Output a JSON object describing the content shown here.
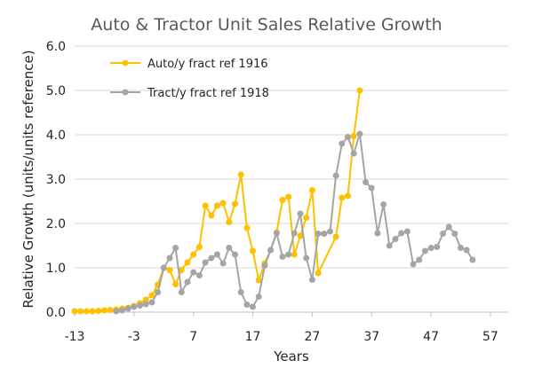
{
  "chart_data": {
    "type": "line",
    "title": "Auto & Tractor Unit Sales Relative Growth",
    "xlabel": "Years",
    "ylabel": "Relative Growth (units/units reference)",
    "xlim": [
      -13,
      60
    ],
    "ylim": [
      0,
      6
    ],
    "x_ticks": [
      "-13",
      "-3",
      "7",
      "17",
      "27",
      "37",
      "47",
      "57"
    ],
    "y_ticks": [
      "0.0",
      "1.0",
      "2.0",
      "3.0",
      "4.0",
      "5.0",
      "6.0"
    ],
    "grid": "horizontal",
    "legend_position": "top-left",
    "series": [
      {
        "name": "Auto/y fract ref 1916",
        "color": "#FFC000",
        "points": [
          [
            -13,
            0.02
          ],
          [
            -12,
            0.02
          ],
          [
            -11,
            0.02
          ],
          [
            -10,
            0.02
          ],
          [
            -9,
            0.03
          ],
          [
            -8,
            0.04
          ],
          [
            -7,
            0.05
          ],
          [
            -6,
            0.06
          ],
          [
            -5,
            0.08
          ],
          [
            -4,
            0.1
          ],
          [
            -3,
            0.14
          ],
          [
            -2,
            0.2
          ],
          [
            -1,
            0.28
          ],
          [
            0,
            0.38
          ],
          [
            1,
            0.62
          ],
          [
            2,
            1.0
          ],
          [
            3,
            0.95
          ],
          [
            4,
            0.63
          ],
          [
            5,
            0.95
          ],
          [
            6,
            1.12
          ],
          [
            7,
            1.3
          ],
          [
            8,
            1.47
          ],
          [
            9,
            2.4
          ],
          [
            10,
            2.18
          ],
          [
            11,
            2.4
          ],
          [
            12,
            2.46
          ],
          [
            13,
            2.03
          ],
          [
            14,
            2.44
          ],
          [
            15,
            3.1
          ],
          [
            16,
            1.9
          ],
          [
            17,
            1.38
          ],
          [
            18,
            0.72
          ],
          [
            19,
            1.1
          ],
          [
            20,
            1.4
          ],
          [
            21,
            1.8
          ],
          [
            22,
            2.53
          ],
          [
            23,
            2.6
          ],
          [
            24,
            1.3
          ],
          [
            25,
            1.72
          ],
          [
            26,
            2.13
          ],
          [
            27,
            2.75
          ],
          [
            28,
            0.88
          ],
          [
            31,
            1.7
          ],
          [
            32,
            2.58
          ],
          [
            33,
            2.62
          ],
          [
            34,
            3.97
          ],
          [
            35,
            5.0
          ]
        ]
      },
      {
        "name": "Tract/y fract ref 1918",
        "color": "#A5A5A5",
        "points": [
          [
            -6,
            0.02
          ],
          [
            -5,
            0.04
          ],
          [
            -4,
            0.08
          ],
          [
            -3,
            0.12
          ],
          [
            -2,
            0.15
          ],
          [
            -1,
            0.18
          ],
          [
            0,
            0.22
          ],
          [
            1,
            0.45
          ],
          [
            2,
            1.0
          ],
          [
            3,
            1.22
          ],
          [
            4,
            1.45
          ],
          [
            5,
            0.45
          ],
          [
            6,
            0.68
          ],
          [
            7,
            0.9
          ],
          [
            8,
            0.83
          ],
          [
            9,
            1.12
          ],
          [
            10,
            1.22
          ],
          [
            11,
            1.3
          ],
          [
            12,
            1.1
          ],
          [
            13,
            1.45
          ],
          [
            14,
            1.3
          ],
          [
            15,
            0.45
          ],
          [
            16,
            0.17
          ],
          [
            17,
            0.12
          ],
          [
            18,
            0.35
          ],
          [
            19,
            1.05
          ],
          [
            20,
            1.4
          ],
          [
            21,
            1.78
          ],
          [
            22,
            1.25
          ],
          [
            23,
            1.3
          ],
          [
            24,
            1.78
          ],
          [
            25,
            2.22
          ],
          [
            26,
            1.22
          ],
          [
            27,
            0.73
          ],
          [
            28,
            1.77
          ],
          [
            29,
            1.77
          ],
          [
            30,
            1.82
          ],
          [
            31,
            3.08
          ],
          [
            32,
            3.8
          ],
          [
            33,
            3.95
          ],
          [
            34,
            3.58
          ],
          [
            35,
            4.02
          ],
          [
            36,
            2.93
          ],
          [
            37,
            2.8
          ],
          [
            38,
            1.78
          ],
          [
            39,
            2.43
          ],
          [
            40,
            1.5
          ],
          [
            41,
            1.65
          ],
          [
            42,
            1.78
          ],
          [
            43,
            1.82
          ],
          [
            44,
            1.08
          ],
          [
            45,
            1.18
          ],
          [
            46,
            1.38
          ],
          [
            47,
            1.45
          ],
          [
            48,
            1.47
          ],
          [
            49,
            1.77
          ],
          [
            50,
            1.92
          ],
          [
            51,
            1.77
          ],
          [
            52,
            1.45
          ],
          [
            53,
            1.4
          ],
          [
            54,
            1.18
          ]
        ]
      }
    ]
  }
}
